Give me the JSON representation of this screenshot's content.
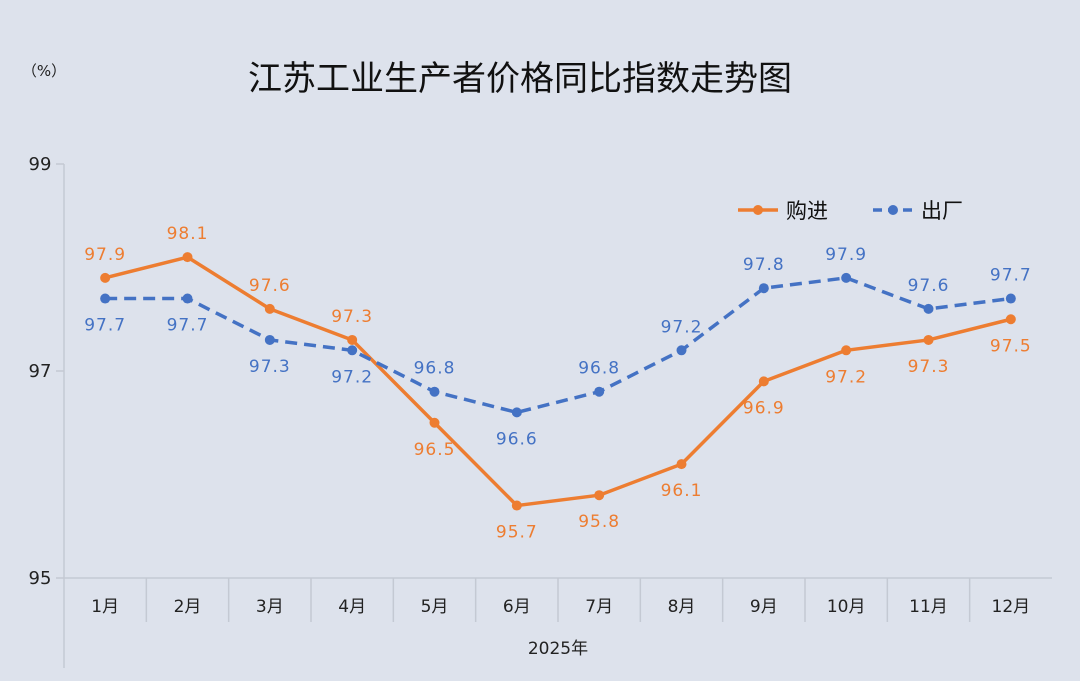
{
  "chart_data": {
    "type": "line",
    "title": "江苏工业生产者价格同比指数走势图",
    "unit_label": "（%）",
    "xlabel": "2025年",
    "ylabel": "",
    "categories": [
      "1月",
      "2月",
      "3月",
      "4月",
      "5月",
      "6月",
      "7月",
      "8月",
      "9月",
      "10月",
      "11月",
      "12月"
    ],
    "ylim": [
      95,
      99
    ],
    "yticks": [
      95,
      97,
      99
    ],
    "grid": false,
    "legend_position": "top-right",
    "series": [
      {
        "name": "购进",
        "color": "#ed7d31",
        "style": "solid",
        "values": [
          97.9,
          98.1,
          97.6,
          97.3,
          96.5,
          95.7,
          95.8,
          96.1,
          96.9,
          97.2,
          97.3,
          97.5
        ]
      },
      {
        "name": "出厂",
        "color": "#4472c4",
        "style": "dashed",
        "values": [
          97.7,
          97.7,
          97.3,
          97.2,
          96.8,
          96.6,
          96.8,
          97.2,
          97.8,
          97.9,
          97.6,
          97.7
        ]
      }
    ]
  }
}
